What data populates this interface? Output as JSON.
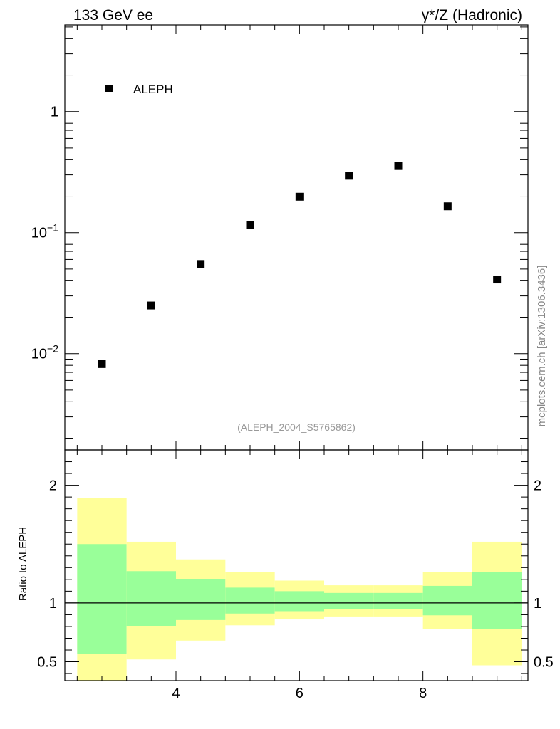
{
  "header": {
    "left": "133 GeV ee",
    "right": "γ*/Z (Hadronic)"
  },
  "side_label": "mcplots.cern.ch [arXiv:1306.3436]",
  "analysis_label": "(ALEPH_2004_S5765862)",
  "legend": {
    "entry": "ALEPH",
    "placement": "top-left"
  },
  "ratio_panel": {
    "ylabel": "Ratio to ALEPH"
  },
  "colors": {
    "band_inner": "#99ff99",
    "band_outer": "#ffff99",
    "marker": "#000000",
    "reference_line": "#000000"
  },
  "chart_data": [
    {
      "type": "scatter",
      "panel": "main",
      "yscale": "log",
      "xlim": [
        2.2,
        9.7
      ],
      "ylim": [
        0.0016,
        5.2
      ],
      "ytick_labels": [
        {
          "value": 0.01,
          "base": "10",
          "exp": "−2"
        },
        {
          "value": 0.1,
          "base": "10",
          "exp": "−1"
        },
        {
          "value": 1,
          "label": "1"
        }
      ],
      "series": [
        {
          "name": "ALEPH",
          "x": [
            2.8,
            3.6,
            4.4,
            5.2,
            6.0,
            6.8,
            7.6,
            8.4,
            9.2
          ],
          "y": [
            0.0082,
            0.025,
            0.055,
            0.115,
            0.198,
            0.295,
            0.355,
            0.165,
            0.041
          ]
        }
      ]
    },
    {
      "type": "area",
      "panel": "ratio",
      "xlim": [
        2.2,
        9.7
      ],
      "ylim": [
        0.34,
        2.3
      ],
      "xticks": [
        4,
        6,
        8
      ],
      "xtick_labels": [
        "4",
        "6",
        "8"
      ],
      "yticks": [
        0.5,
        1,
        2
      ],
      "ytick_labels": [
        "0.5",
        "1",
        "2"
      ],
      "reference_line": 1,
      "bins": [
        {
          "lo": 2.4,
          "hi": 3.2,
          "inner": [
            0.57,
            1.5
          ],
          "outer": [
            0.34,
            1.89
          ]
        },
        {
          "lo": 3.2,
          "hi": 4.0,
          "inner": [
            0.8,
            1.27
          ],
          "outer": [
            0.52,
            1.52
          ]
        },
        {
          "lo": 4.0,
          "hi": 4.8,
          "inner": [
            0.855,
            1.2
          ],
          "outer": [
            0.68,
            1.37
          ]
        },
        {
          "lo": 4.8,
          "hi": 5.6,
          "inner": [
            0.91,
            1.13
          ],
          "outer": [
            0.81,
            1.26
          ]
        },
        {
          "lo": 5.6,
          "hi": 6.4,
          "inner": [
            0.93,
            1.1
          ],
          "outer": [
            0.86,
            1.19
          ]
        },
        {
          "lo": 6.4,
          "hi": 7.2,
          "inner": [
            0.945,
            1.085
          ],
          "outer": [
            0.885,
            1.15
          ]
        },
        {
          "lo": 7.2,
          "hi": 8.0,
          "inner": [
            0.945,
            1.085
          ],
          "outer": [
            0.885,
            1.15
          ]
        },
        {
          "lo": 8.0,
          "hi": 8.8,
          "inner": [
            0.895,
            1.145
          ],
          "outer": [
            0.78,
            1.26
          ]
        },
        {
          "lo": 8.8,
          "hi": 9.6,
          "inner": [
            0.78,
            1.26
          ],
          "outer": [
            0.47,
            1.52
          ]
        }
      ]
    }
  ]
}
